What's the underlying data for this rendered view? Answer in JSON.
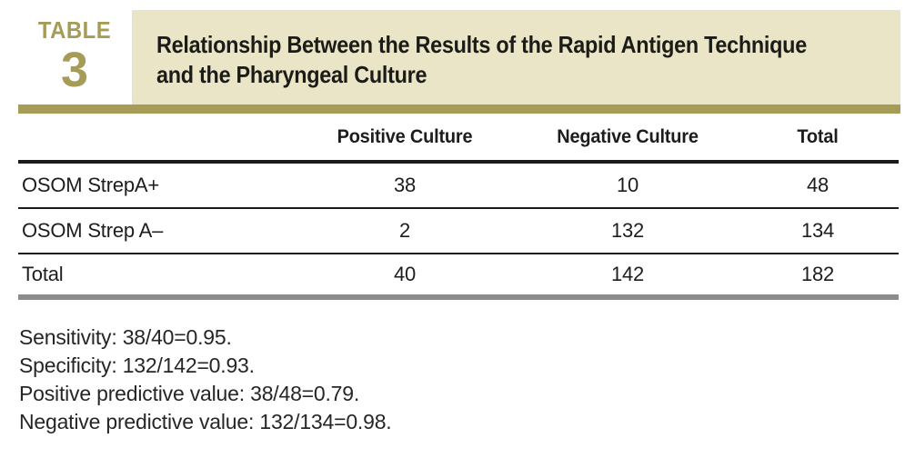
{
  "label": {
    "word": "TABLE",
    "number": "3"
  },
  "title": {
    "line1": "Relationship Between the Results of the Rapid Antigen Technique",
    "line2": "and the Pharyngeal Culture"
  },
  "table": {
    "columns": [
      "",
      "Positive Culture",
      "Negative Culture",
      "Total"
    ],
    "rows": [
      {
        "label": "OSOM StrepA+",
        "values": [
          "38",
          "10",
          "48"
        ]
      },
      {
        "label": "OSOM Strep A–",
        "values": [
          "2",
          "132",
          "134"
        ]
      },
      {
        "label": "Total",
        "values": [
          "40",
          "142",
          "182"
        ]
      }
    ]
  },
  "footnotes": [
    "Sensitivity: 38/40=0.95.",
    "Specificity: 132/142=0.93.",
    "Positive predictive value: 38/48=0.79.",
    "Negative predictive value: 132/134=0.98."
  ],
  "colors": {
    "accent_olive": "#a69c58",
    "band_beige": "#eae5c7",
    "rule_black": "#1b1b1b",
    "bottom_bar_gray": "#8c8c8c"
  }
}
